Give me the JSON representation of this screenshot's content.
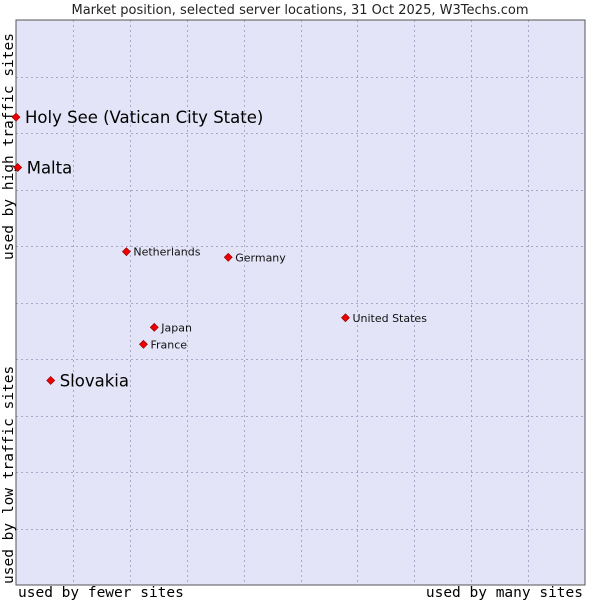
{
  "chart_data": {
    "type": "scatter",
    "title": "Market position, selected server locations, 31 Oct 2025, W3Techs.com",
    "xlabel_left": "used by fewer sites",
    "xlabel_right": "used by many sites",
    "ylabel_low": "used by low traffic sites",
    "ylabel_high": "used by high traffic sites",
    "xlim": [
      0,
      100
    ],
    "ylim": [
      0,
      100
    ],
    "grid": true,
    "background_color": "#e4e4f8",
    "point_color": "#ee0000",
    "points": [
      {
        "name": "Holy See (Vatican City State)",
        "x": 0.0,
        "y": 82.8,
        "highlight": true
      },
      {
        "name": "Malta",
        "x": 0.3,
        "y": 73.9,
        "highlight": true
      },
      {
        "name": "Netherlands",
        "x": 19.4,
        "y": 59.0,
        "highlight": false
      },
      {
        "name": "Germany",
        "x": 37.3,
        "y": 58.0,
        "highlight": false
      },
      {
        "name": "United States",
        "x": 57.9,
        "y": 47.3,
        "highlight": false
      },
      {
        "name": "Japan",
        "x": 24.3,
        "y": 45.6,
        "highlight": false
      },
      {
        "name": "France",
        "x": 22.4,
        "y": 42.6,
        "highlight": false
      },
      {
        "name": "Slovakia",
        "x": 6.1,
        "y": 36.2,
        "highlight": true
      }
    ]
  }
}
